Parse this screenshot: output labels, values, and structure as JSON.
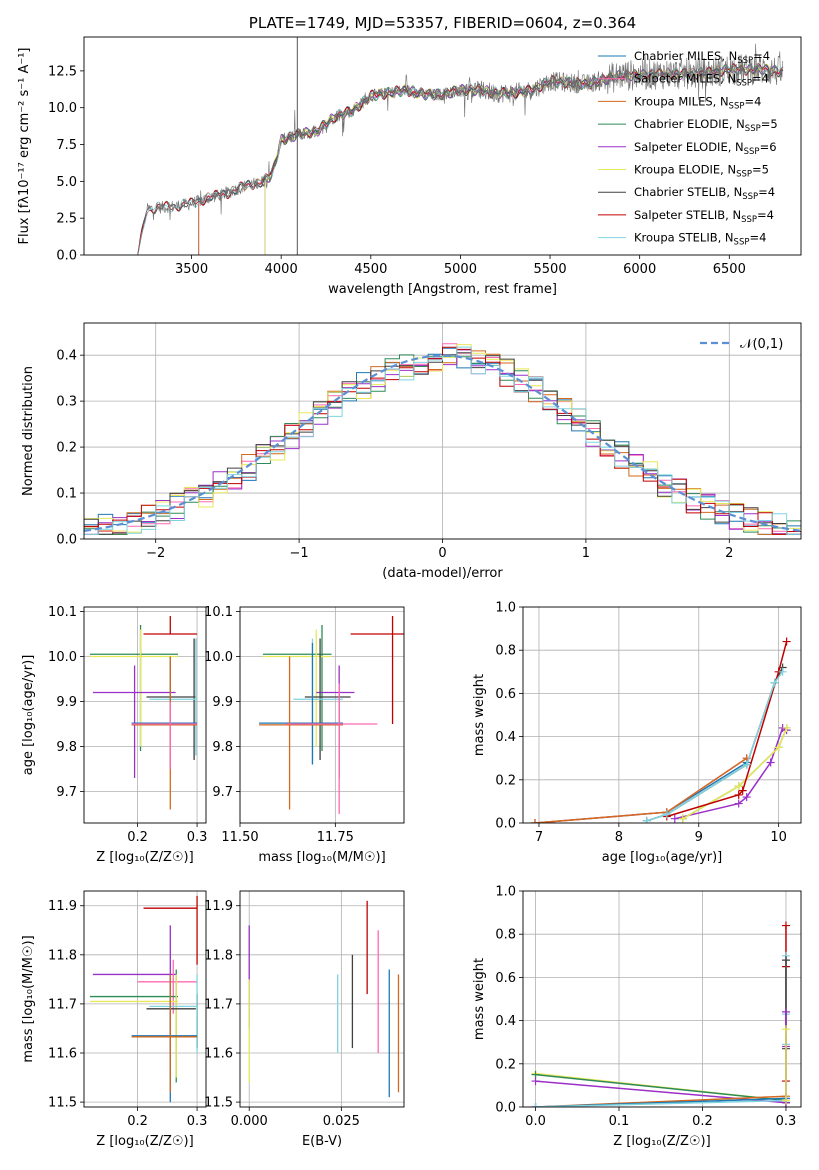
{
  "colors": {
    "Chabrier MILES": "#1f77b4",
    "Salpeter MILES": "#ff69b4",
    "Kroupa MILES": "#d2691e",
    "Chabrier ELODIE": "#2e8b57",
    "Salpeter ELODIE": "#9b30c8",
    "Kroupa ELODIE": "#e8e85a",
    "Chabrier STELIB": "#404040",
    "Salpeter STELIB": "#c00000",
    "Kroupa STELIB": "#7fd4e0"
  },
  "chart_data": [
    {
      "id": "spectrum",
      "type": "line",
      "title": "PLATE=1749, MJD=53357, FIBERID=0604, z=0.364",
      "xlabel": "wavelength [Angstrom, rest frame]",
      "ylabel": "Flux [fλ10⁻¹⁷ erg cm⁻² s⁻¹ A⁻¹]",
      "xlim": [
        2900,
        6900
      ],
      "ylim": [
        0,
        14.8
      ],
      "xticks": [
        3500,
        4000,
        4500,
        5000,
        5500,
        6000,
        6500
      ],
      "yticks": [
        0.0,
        2.5,
        5.0,
        7.5,
        10.0,
        12.5
      ],
      "grid": false,
      "legend_position": "top-right",
      "legend": [
        {
          "model": "Chabrier MILES",
          "label": "Chabrier MILES, N",
          "sub": "SSP",
          "suffix": "=4"
        },
        {
          "model": "Salpeter MILES",
          "label": "Salpeter MILES, N",
          "sub": "SSP",
          "suffix": "=4"
        },
        {
          "model": "Kroupa MILES",
          "label": "Kroupa MILES, N",
          "sub": "SSP",
          "suffix": "=4"
        },
        {
          "model": "Chabrier ELODIE",
          "label": "Chabrier ELODIE, N",
          "sub": "SSP",
          "suffix": "=5"
        },
        {
          "model": "Salpeter ELODIE",
          "label": "Salpeter ELODIE, N",
          "sub": "SSP",
          "suffix": "=6"
        },
        {
          "model": "Kroupa ELODIE",
          "label": "Kroupa ELODIE, N",
          "sub": "SSP",
          "suffix": "=5"
        },
        {
          "model": "Chabrier STELIB",
          "label": "Chabrier STELIB, N",
          "sub": "SSP",
          "suffix": "=4"
        },
        {
          "model": "Salpeter STELIB",
          "label": "Salpeter STELIB, N",
          "sub": "SSP",
          "suffix": "=4"
        },
        {
          "model": "Kroupa STELIB",
          "label": "Kroupa STELIB, N",
          "sub": "SSP",
          "suffix": "=4"
        }
      ],
      "spectrum_trend": {
        "x": [
          3200,
          3250,
          3300,
          3400,
          3500,
          3600,
          3700,
          3800,
          3900,
          3950,
          4000,
          4100,
          4200,
          4300,
          4400,
          4500,
          4600,
          4700,
          4800,
          4900,
          5000,
          5100,
          5200,
          5300,
          5400,
          5500,
          5600,
          5700,
          5800,
          5900,
          6000,
          6100,
          6200,
          6300,
          6400,
          6500,
          6600,
          6700,
          6800
        ],
        "y": [
          0,
          3.1,
          3.2,
          3.3,
          3.5,
          3.9,
          4.2,
          4.7,
          5.0,
          5.5,
          7.8,
          8.2,
          8.4,
          9.4,
          9.8,
          10.8,
          11.0,
          11.2,
          10.9,
          10.9,
          11.2,
          11.2,
          11.0,
          11.0,
          11.2,
          11.8,
          11.7,
          11.6,
          11.9,
          12.2,
          12.2,
          12.3,
          12.3,
          12.3,
          12.4,
          12.6,
          12.6,
          12.6,
          12.4
        ]
      },
      "model_starts": {
        "MILES": 3540,
        "ELODIE": 3910,
        "STELIB": 3200
      },
      "spike_x": 4090
    },
    {
      "id": "residual-histogram",
      "type": "bar",
      "xlabel": "(data-model)/error",
      "ylabel": "Normed distribution",
      "xlim": [
        -2.5,
        2.5
      ],
      "ylim": [
        0,
        0.47
      ],
      "xticks": [
        -2,
        -1,
        0,
        1,
        2
      ],
      "yticks": [
        0.0,
        0.1,
        0.2,
        0.3,
        0.4
      ],
      "grid": true,
      "bin_width": 0.1,
      "bin_start": -2.5,
      "reference": {
        "label": "𝒩(0,1)",
        "mean": 0,
        "sigma": 1,
        "color": "#5b8fd6",
        "legend_position": "top-right"
      }
    },
    {
      "id": "age-vs-metallicity",
      "type": "scatter",
      "xlabel": "Z [log₁₀(Z/Z☉)]",
      "ylabel": "age  [log₁₀(age/yr)]",
      "xlim": [
        0.11,
        0.315
      ],
      "ylim": [
        9.63,
        10.11
      ],
      "xticks": [
        0.2,
        0.3
      ],
      "yticks": [
        9.7,
        9.8,
        9.9,
        10.0,
        10.1
      ],
      "grid": true,
      "points": [
        {
          "model": "Salpeter STELIB",
          "x": 0.255,
          "y": 10.05,
          "xerr": [
            0.21,
            0.3
          ],
          "yerr": [
            10.05,
            10.09
          ]
        },
        {
          "model": "Chabrier ELODIE",
          "x": 0.205,
          "y": 10.005,
          "xerr": [
            0.12,
            0.268
          ],
          "yerr": [
            9.79,
            10.07
          ]
        },
        {
          "model": "Kroupa ELODIE",
          "x": 0.205,
          "y": 10.0,
          "xerr": [
            0.12,
            0.268
          ],
          "yerr": [
            9.8,
            10.06
          ]
        },
        {
          "model": "Salpeter ELODIE",
          "x": 0.195,
          "y": 9.92,
          "xerr": [
            0.125,
            0.264
          ],
          "yerr": [
            9.73,
            9.98
          ]
        },
        {
          "model": "Chabrier STELIB",
          "x": 0.295,
          "y": 9.91,
          "xerr": [
            0.215,
            0.298
          ],
          "yerr": [
            9.77,
            10.04
          ]
        },
        {
          "model": "Kroupa STELIB",
          "x": 0.298,
          "y": 9.905,
          "xerr": [
            0.22,
            0.3
          ],
          "yerr": [
            9.78,
            10.04
          ]
        },
        {
          "model": "Chabrier MILES",
          "x": 0.255,
          "y": 9.852,
          "xerr": [
            0.19,
            0.3
          ],
          "yerr": [
            9.75,
            10.0
          ]
        },
        {
          "model": "Kroupa MILES",
          "x": 0.255,
          "y": 9.848,
          "xerr": [
            0.19,
            0.3
          ],
          "yerr": [
            9.66,
            10.0
          ]
        },
        {
          "model": "Salpeter MILES",
          "x": 0.255,
          "y": 9.85,
          "xerr": [
            0.19,
            0.3
          ],
          "yerr": [
            9.75,
            9.9
          ]
        }
      ]
    },
    {
      "id": "age-vs-mass",
      "type": "scatter",
      "xlabel": "mass [log₁₀(M/M☉)]",
      "ylabel": "",
      "xlim": [
        11.5,
        11.93
      ],
      "ylim": [
        9.63,
        10.11
      ],
      "xticks": [
        11.5,
        11.75
      ],
      "xtick_labels": [
        "11.50",
        "11.75"
      ],
      "yticks": [
        9.7,
        9.8,
        9.9,
        10.0,
        10.1
      ],
      "grid": true,
      "points": [
        {
          "model": "Salpeter STELIB",
          "x": 11.9,
          "y": 10.05,
          "xerr": [
            11.79,
            11.93
          ],
          "yerr": [
            9.85,
            10.09
          ]
        },
        {
          "model": "Chabrier ELODIE",
          "x": 11.715,
          "y": 10.005,
          "xerr": [
            11.56,
            11.74
          ],
          "yerr": [
            9.79,
            10.07
          ]
        },
        {
          "model": "Kroupa ELODIE",
          "x": 11.7,
          "y": 10.0,
          "xerr": [
            11.56,
            11.74
          ],
          "yerr": [
            9.8,
            10.06
          ]
        },
        {
          "model": "Salpeter ELODIE",
          "x": 11.76,
          "y": 9.92,
          "xerr": [
            11.7,
            11.8
          ],
          "yerr": [
            9.73,
            9.98
          ]
        },
        {
          "model": "Chabrier STELIB",
          "x": 11.71,
          "y": 9.91,
          "xerr": [
            11.67,
            11.79
          ],
          "yerr": [
            9.77,
            10.04
          ]
        },
        {
          "model": "Kroupa STELIB",
          "x": 11.69,
          "y": 9.905,
          "xerr": [
            11.64,
            11.77
          ],
          "yerr": [
            9.76,
            10.04
          ]
        },
        {
          "model": "Chabrier MILES",
          "x": 11.69,
          "y": 9.852,
          "xerr": [
            11.55,
            11.77
          ],
          "yerr": [
            9.76,
            10.03
          ]
        },
        {
          "model": "Kroupa MILES",
          "x": 11.63,
          "y": 9.848,
          "xerr": [
            11.55,
            11.77
          ],
          "yerr": [
            9.66,
            10.0
          ]
        },
        {
          "model": "Salpeter MILES",
          "x": 11.76,
          "y": 9.85,
          "xerr": [
            11.62,
            11.86
          ],
          "yerr": [
            9.65,
            9.94
          ]
        }
      ]
    },
    {
      "id": "mass-weight-vs-age",
      "type": "line",
      "xlabel": "age  [log₁₀(age/yr)]",
      "ylabel": "mass weight",
      "xlim": [
        6.8,
        10.28
      ],
      "ylim": [
        0,
        1.0
      ],
      "xticks": [
        7,
        8,
        9,
        10
      ],
      "yticks": [
        0.0,
        0.2,
        0.4,
        0.6,
        0.8,
        1.0
      ],
      "grid": true,
      "series": [
        {
          "model": "Chabrier MILES",
          "x": [
            6.95,
            8.6,
            9.6
          ],
          "y": [
            0.0,
            0.05,
            0.28
          ]
        },
        {
          "model": "Salpeter MILES",
          "x": [
            6.95,
            8.6,
            9.6
          ],
          "y": [
            0.0,
            0.05,
            0.3
          ]
        },
        {
          "model": "Kroupa MILES",
          "x": [
            6.95,
            8.6,
            9.6
          ],
          "y": [
            0.0,
            0.05,
            0.3
          ]
        },
        {
          "model": "Chabrier ELODIE",
          "x": [
            8.8,
            9.5,
            10.0,
            10.1
          ],
          "y": [
            0.02,
            0.17,
            0.35,
            0.44
          ]
        },
        {
          "model": "Salpeter ELODIE",
          "x": [
            8.7,
            9.5,
            9.6,
            9.9,
            10.05,
            10.1
          ],
          "y": [
            0.02,
            0.09,
            0.12,
            0.28,
            0.44,
            0.43
          ]
        },
        {
          "model": "Kroupa ELODIE",
          "x": [
            8.8,
            9.5,
            10.0,
            10.1
          ],
          "y": [
            0.02,
            0.17,
            0.35,
            0.44
          ]
        },
        {
          "model": "Chabrier STELIB",
          "x": [
            8.35,
            8.6,
            9.6,
            9.95,
            10.05
          ],
          "y": [
            0.01,
            0.04,
            0.27,
            0.65,
            0.72
          ]
        },
        {
          "model": "Salpeter STELIB",
          "x": [
            8.6,
            9.5,
            9.55,
            10.0,
            10.1
          ],
          "y": [
            0.03,
            0.13,
            0.15,
            0.7,
            0.84
          ]
        },
        {
          "model": "Kroupa STELIB",
          "x": [
            8.35,
            8.6,
            9.6,
            9.95,
            10.05
          ],
          "y": [
            0.01,
            0.04,
            0.27,
            0.65,
            0.7
          ]
        }
      ]
    },
    {
      "id": "mass-vs-metallicity",
      "type": "scatter",
      "xlabel": "Z [log₁₀(Z/Z☉)]",
      "ylabel": "mass [log₁₀(M/M☉)]",
      "xlim": [
        0.11,
        0.315
      ],
      "ylim": [
        11.49,
        11.93
      ],
      "xticks": [
        0.2,
        0.3
      ],
      "yticks": [
        11.5,
        11.6,
        11.7,
        11.8,
        11.9
      ],
      "grid": true,
      "points": [
        {
          "model": "Salpeter STELIB",
          "x": 0.3,
          "y": 11.895,
          "xerr": [
            0.21,
            0.3
          ],
          "yerr": [
            11.78,
            11.92
          ]
        },
        {
          "model": "Salpeter ELODIE",
          "x": 0.255,
          "y": 11.76,
          "xerr": [
            0.125,
            0.264
          ],
          "yerr": [
            11.6,
            11.86
          ]
        },
        {
          "model": "Salpeter MILES",
          "x": 0.26,
          "y": 11.745,
          "xerr": [
            0.2,
            0.3
          ],
          "yerr": [
            11.68,
            11.79
          ]
        },
        {
          "model": "Chabrier ELODIE",
          "x": 0.265,
          "y": 11.715,
          "xerr": [
            0.12,
            0.268
          ],
          "yerr": [
            11.54,
            11.77
          ]
        },
        {
          "model": "Kroupa ELODIE",
          "x": 0.265,
          "y": 11.705,
          "xerr": [
            0.12,
            0.268
          ],
          "yerr": [
            11.55,
            11.76
          ]
        },
        {
          "model": "Chabrier STELIB",
          "x": 0.3,
          "y": 11.69,
          "xerr": [
            0.215,
            0.298
          ],
          "yerr": [
            11.61,
            11.72
          ]
        },
        {
          "model": "Kroupa STELIB",
          "x": 0.3,
          "y": 11.695,
          "xerr": [
            0.22,
            0.3
          ],
          "yerr": [
            11.6,
            11.76
          ]
        },
        {
          "model": "Chabrier MILES",
          "x": 0.255,
          "y": 11.635,
          "xerr": [
            0.19,
            0.3
          ],
          "yerr": [
            11.5,
            11.76
          ]
        },
        {
          "model": "Kroupa MILES",
          "x": 0.255,
          "y": 11.633,
          "xerr": [
            0.19,
            0.3
          ],
          "yerr": [
            11.52,
            11.76
          ]
        }
      ]
    },
    {
      "id": "mass-vs-extinction",
      "type": "scatter",
      "xlabel": "E(B-V)",
      "ylabel": "",
      "xlim": [
        -0.0025,
        0.042
      ],
      "ylim": [
        11.49,
        11.93
      ],
      "xticks": [
        0.0,
        0.025
      ],
      "xtick_labels": [
        "0.000",
        "0.025"
      ],
      "yticks": [
        11.5,
        11.6,
        11.7,
        11.8,
        11.9
      ],
      "grid": true,
      "points": [
        {
          "model": "Salpeter ELODIE",
          "x": 0.0,
          "yerr": [
            11.65,
            11.86
          ]
        },
        {
          "model": "Kroupa ELODIE",
          "x": 0.0,
          "yerr": [
            11.54,
            11.75
          ]
        },
        {
          "model": "Kroupa STELIB",
          "x": 0.024,
          "yerr": [
            11.6,
            11.76
          ]
        },
        {
          "model": "Chabrier STELIB",
          "x": 0.028,
          "yerr": [
            11.61,
            11.8
          ]
        },
        {
          "model": "Salpeter STELIB",
          "x": 0.032,
          "yerr": [
            11.72,
            11.91
          ]
        },
        {
          "model": "Salpeter MILES",
          "x": 0.035,
          "yerr": [
            11.6,
            11.85
          ]
        },
        {
          "model": "Chabrier MILES",
          "x": 0.038,
          "yerr": [
            11.51,
            11.77
          ]
        },
        {
          "model": "Kroupa MILES",
          "x": 0.0405,
          "yerr": [
            11.52,
            11.76
          ]
        }
      ]
    },
    {
      "id": "mass-weight-vs-metallicity",
      "type": "line",
      "xlabel": "Z [log₁₀(Z/Z☉)]",
      "ylabel": "mass weight",
      "xlim": [
        -0.015,
        0.318
      ],
      "ylim": [
        0,
        1.0
      ],
      "xticks": [
        0.0,
        0.1,
        0.2,
        0.3
      ],
      "yticks": [
        0.0,
        0.2,
        0.4,
        0.6,
        0.8,
        1.0
      ],
      "grid": true,
      "series": [
        {
          "model": "Kroupa ELODIE",
          "x": [
            0.0,
            0.3
          ],
          "y": [
            0.155,
            0.03
          ]
        },
        {
          "model": "Chabrier ELODIE",
          "x": [
            0.0,
            0.3
          ],
          "y": [
            0.15,
            0.03
          ]
        },
        {
          "model": "Salpeter ELODIE",
          "x": [
            0.0,
            0.3
          ],
          "y": [
            0.12,
            0.02
          ]
        },
        {
          "model": "Kroupa MILES",
          "x": [
            0.0,
            0.3
          ],
          "y": [
            0.0,
            0.05
          ]
        },
        {
          "model": "Chabrier MILES",
          "x": [
            0.0,
            0.3
          ],
          "y": [
            0.0,
            0.04
          ]
        },
        {
          "model": "Kroupa STELIB",
          "x": [
            0.0,
            0.3
          ],
          "y": [
            0.0,
            0.03
          ]
        }
      ],
      "vertical_markers": [
        {
          "model": "Salpeter STELIB",
          "x": 0.3,
          "y": [
            0.12,
            0.65,
            0.84
          ]
        },
        {
          "model": "Kroupa STELIB",
          "x": 0.3,
          "y": [
            0.03,
            0.29,
            0.43,
            0.7
          ]
        },
        {
          "model": "Chabrier STELIB",
          "x": 0.3,
          "y": [
            0.02,
            0.27,
            0.44,
            0.68
          ]
        },
        {
          "model": "Salpeter ELODIE",
          "x": 0.3,
          "y": [
            0.02,
            0.28,
            0.44
          ]
        },
        {
          "model": "Kroupa ELODIE",
          "x": 0.3,
          "y": [
            0.03,
            0.36
          ]
        }
      ]
    }
  ]
}
